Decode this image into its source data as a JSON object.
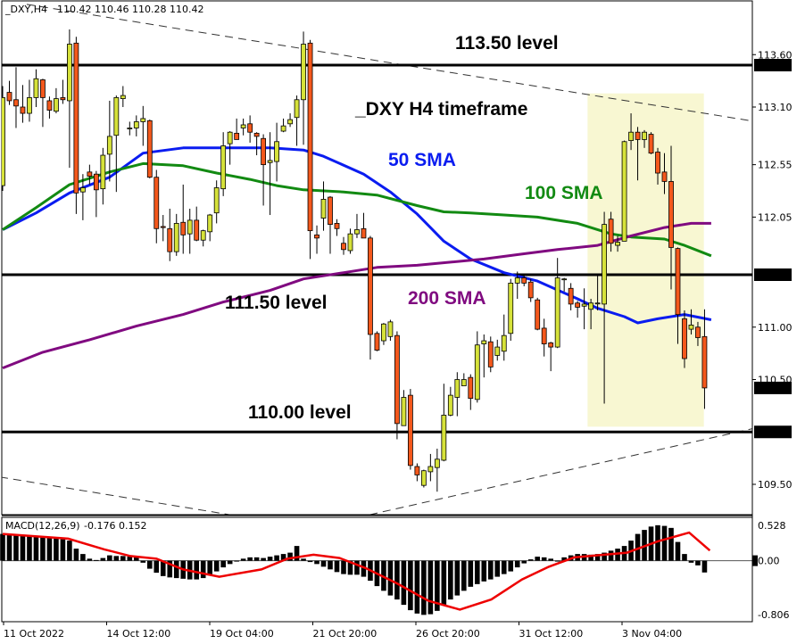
{
  "header": {
    "symbol": "_DXY,H4",
    "ohlc": "110.42 110.46 110.28 110.42"
  },
  "macd_header": {
    "label": "MACD(12,26,9)",
    "values": "-0.176 0.152"
  },
  "colors": {
    "bull": "#d6e23a",
    "bear": "#f4581c",
    "sma50": "#0a1cf0",
    "sma100": "#128a12",
    "sma200": "#800a80",
    "signal": "#ee0000",
    "highlight": "#f8f7d2"
  },
  "annotations": {
    "level_113": "113.50 level",
    "timeframe": "_DXY H4 timeframe",
    "sma50": "50 SMA",
    "sma100": "100 SMA",
    "level_111": "111.50 level",
    "sma200": "200 SMA",
    "level_110": "110.00 level"
  },
  "chart_data": [
    {
      "type": "candlestick",
      "title": "",
      "ylim": [
        109.3,
        114.1
      ],
      "price_ticks": [
        "113.60",
        "113.10",
        "112.55",
        "112.05",
        "111.00",
        "110.50",
        "109.50"
      ],
      "price_markers": [
        "113.50",
        "111.50",
        "110.42",
        "110.00"
      ],
      "horizontal_levels": [
        113.5,
        111.5,
        110.0
      ],
      "x_tick_labels": [
        "11 Oct 2022",
        "14 Oct 12:00",
        "19 Oct 04:00",
        "21 Oct 20:00",
        "26 Oct 20:00",
        "31 Oct 12:00",
        "3 Nov 04:00"
      ],
      "ohlc": [
        [
          112.35,
          113.3,
          112.3,
          113.19
        ],
        [
          113.24,
          113.35,
          113.12,
          113.16
        ],
        [
          113.17,
          113.48,
          112.9,
          113.11
        ],
        [
          113.1,
          113.31,
          112.95,
          113.04
        ],
        [
          113.04,
          113.36,
          112.96,
          113.19
        ],
        [
          113.19,
          113.46,
          113.1,
          113.37
        ],
        [
          113.36,
          113.37,
          112.91,
          113.19
        ],
        [
          113.16,
          113.2,
          112.99,
          113.07
        ],
        [
          113.06,
          113.28,
          113.04,
          113.18
        ],
        [
          113.19,
          113.36,
          113.13,
          113.17
        ],
        [
          113.16,
          113.84,
          112.52,
          113.7
        ],
        [
          113.71,
          113.77,
          112.08,
          112.28
        ],
        [
          112.29,
          112.46,
          112.02,
          112.33
        ],
        [
          112.48,
          112.55,
          112.36,
          112.44
        ],
        [
          112.46,
          112.49,
          112.05,
          112.31
        ],
        [
          112.32,
          112.71,
          112.17,
          112.64
        ],
        [
          112.65,
          113.16,
          112.39,
          112.82
        ],
        [
          112.83,
          113.21,
          112.29,
          113.19
        ],
        [
          113.18,
          113.3,
          113.1,
          113.21
        ],
        [
          112.9,
          112.96,
          112.83,
          112.9
        ],
        [
          112.9,
          113.02,
          112.82,
          112.96
        ],
        [
          112.96,
          113.11,
          112.73,
          112.99
        ],
        [
          112.97,
          112.98,
          112.42,
          112.43
        ],
        [
          112.43,
          112.5,
          111.8,
          111.94
        ],
        [
          111.96,
          112.07,
          111.82,
          111.95
        ],
        [
          111.94,
          112.13,
          111.63,
          111.72
        ],
        [
          111.72,
          112.08,
          111.68,
          111.99
        ],
        [
          112.0,
          112.36,
          111.7,
          111.88
        ],
        [
          111.89,
          112.13,
          111.7,
          112.02
        ],
        [
          112.02,
          112.15,
          111.82,
          111.83
        ],
        [
          111.83,
          111.93,
          111.77,
          111.92
        ],
        [
          111.91,
          112.08,
          111.82,
          112.07
        ],
        [
          112.09,
          112.4,
          111.99,
          112.33
        ],
        [
          112.32,
          112.86,
          112.25,
          112.73
        ],
        [
          112.75,
          112.87,
          112.55,
          112.86
        ],
        [
          112.85,
          112.99,
          112.79,
          112.79
        ],
        [
          112.9,
          112.99,
          112.83,
          112.93
        ],
        [
          112.94,
          113.02,
          112.76,
          112.86
        ],
        [
          112.85,
          112.86,
          112.64,
          112.82
        ],
        [
          112.8,
          112.84,
          112.16,
          112.55
        ],
        [
          112.57,
          112.86,
          112.07,
          112.59
        ],
        [
          112.58,
          112.95,
          112.39,
          112.77
        ],
        [
          112.87,
          112.99,
          112.86,
          112.92
        ],
        [
          112.94,
          113.04,
          112.91,
          112.98
        ],
        [
          113.0,
          113.21,
          112.73,
          113.17
        ],
        [
          113.17,
          113.82,
          112.74,
          113.7
        ],
        [
          113.71,
          113.74,
          111.65,
          111.92
        ],
        [
          111.88,
          111.97,
          111.7,
          111.85
        ],
        [
          112.04,
          112.39,
          111.92,
          112.22
        ],
        [
          112.24,
          112.25,
          111.7,
          111.98
        ],
        [
          111.99,
          112.03,
          111.87,
          111.94
        ],
        [
          111.8,
          111.86,
          111.69,
          111.74
        ],
        [
          111.73,
          111.94,
          111.7,
          111.89
        ],
        [
          111.89,
          112.08,
          111.85,
          111.93
        ],
        [
          111.94,
          112.09,
          111.85,
          111.85
        ],
        [
          111.85,
          111.87,
          110.69,
          110.93
        ],
        [
          110.94,
          110.96,
          110.77,
          110.78
        ],
        [
          110.87,
          111.04,
          110.83,
          111.03
        ],
        [
          110.91,
          111.07,
          110.87,
          111.05
        ],
        [
          110.92,
          110.96,
          109.93,
          110.08
        ],
        [
          110.06,
          110.4,
          110.06,
          110.33
        ],
        [
          110.35,
          110.41,
          109.64,
          109.68
        ],
        [
          109.67,
          109.7,
          109.53,
          109.59
        ],
        [
          109.49,
          109.64,
          109.47,
          109.63
        ],
        [
          109.62,
          109.79,
          109.53,
          109.67
        ],
        [
          109.66,
          109.84,
          109.43,
          109.74
        ],
        [
          109.73,
          110.46,
          109.72,
          110.16
        ],
        [
          110.16,
          110.43,
          110.15,
          110.35
        ],
        [
          110.33,
          110.57,
          110.15,
          110.5
        ],
        [
          110.44,
          110.56,
          110.44,
          110.5
        ],
        [
          110.52,
          110.55,
          110.21,
          110.32
        ],
        [
          110.31,
          110.96,
          110.28,
          110.83
        ],
        [
          110.84,
          110.93,
          110.52,
          110.87
        ],
        [
          110.86,
          110.91,
          110.57,
          110.62
        ],
        [
          110.73,
          110.88,
          110.68,
          110.81
        ],
        [
          110.77,
          111.12,
          110.68,
          110.92
        ],
        [
          110.94,
          111.46,
          110.87,
          111.42
        ],
        [
          111.42,
          111.53,
          111.27,
          111.47
        ],
        [
          111.47,
          111.5,
          111.39,
          111.42
        ],
        [
          111.43,
          111.46,
          111.24,
          111.28
        ],
        [
          111.26,
          111.28,
          110.97,
          110.98
        ],
        [
          110.99,
          111.08,
          110.72,
          110.84
        ],
        [
          110.85,
          110.86,
          110.58,
          110.81
        ],
        [
          110.81,
          111.66,
          110.8,
          111.47
        ],
        [
          111.46,
          111.47,
          111.34,
          111.46
        ],
        [
          111.37,
          111.42,
          111.16,
          111.22
        ],
        [
          111.23,
          111.25,
          111.09,
          111.19
        ],
        [
          111.2,
          111.37,
          110.98,
          111.22
        ],
        [
          111.17,
          111.27,
          110.98,
          111.23
        ],
        [
          111.23,
          111.5,
          111.16,
          111.23
        ],
        [
          111.22,
          112.1,
          110.27,
          111.98
        ],
        [
          112.03,
          112.1,
          111.72,
          111.8
        ],
        [
          111.78,
          111.87,
          111.72,
          111.81
        ],
        [
          111.82,
          112.78,
          111.82,
          112.77
        ],
        [
          112.78,
          113.04,
          112.69,
          112.86
        ],
        [
          112.86,
          112.91,
          112.4,
          112.79
        ],
        [
          112.79,
          112.88,
          112.71,
          112.86
        ],
        [
          112.84,
          112.86,
          112.65,
          112.66
        ],
        [
          112.67,
          112.71,
          112.36,
          112.47
        ],
        [
          112.48,
          112.66,
          112.27,
          112.39
        ],
        [
          112.39,
          112.73,
          111.36,
          111.76
        ],
        [
          111.75,
          111.76,
          110.84,
          111.12
        ],
        [
          111.08,
          111.16,
          110.61,
          110.7
        ],
        [
          110.98,
          111.17,
          110.93,
          111.02
        ],
        [
          111.0,
          111.05,
          110.82,
          110.9
        ],
        [
          110.91,
          111.17,
          110.22,
          110.42
        ]
      ],
      "series": [
        {
          "name": "50 SMA",
          "points": [
            [
              0,
              111.93
            ],
            [
              5,
              112.09
            ],
            [
              10,
              112.28
            ],
            [
              16,
              112.43
            ],
            [
              21,
              112.66
            ],
            [
              27,
              112.71
            ],
            [
              33,
              112.71
            ],
            [
              40,
              112.71
            ],
            [
              45,
              112.69
            ],
            [
              48,
              112.63
            ],
            [
              54,
              112.46
            ],
            [
              58,
              112.29
            ],
            [
              62,
              112.08
            ],
            [
              66,
              111.82
            ],
            [
              70,
              111.65
            ],
            [
              75,
              111.52
            ],
            [
              80,
              111.44
            ],
            [
              86,
              111.27
            ],
            [
              89,
              111.18
            ],
            [
              93,
              111.1
            ],
            [
              95,
              111.04
            ],
            [
              98,
              111.08
            ],
            [
              102,
              111.12
            ],
            [
              106,
              111.07
            ]
          ]
        },
        {
          "name": "100 SMA",
          "points": [
            [
              0,
              111.93
            ],
            [
              5,
              112.14
            ],
            [
              10,
              112.36
            ],
            [
              16,
              112.48
            ],
            [
              21,
              112.56
            ],
            [
              27,
              112.54
            ],
            [
              32,
              112.47
            ],
            [
              37,
              112.41
            ],
            [
              41,
              112.35
            ],
            [
              45,
              112.31
            ],
            [
              51,
              112.29
            ],
            [
              56,
              112.26
            ],
            [
              62,
              112.16
            ],
            [
              66,
              112.1
            ],
            [
              70,
              112.09
            ],
            [
              75,
              112.07
            ],
            [
              80,
              112.05
            ],
            [
              86,
              111.99
            ],
            [
              91,
              111.89
            ],
            [
              94,
              111.86
            ],
            [
              99,
              111.84
            ],
            [
              102,
              111.78
            ],
            [
              106,
              111.68
            ]
          ]
        },
        {
          "name": "200 SMA",
          "points": [
            [
              0,
              110.61
            ],
            [
              6,
              110.76
            ],
            [
              13,
              110.88
            ],
            [
              20,
              111.01
            ],
            [
              27,
              111.12
            ],
            [
              33,
              111.24
            ],
            [
              40,
              111.35
            ],
            [
              45,
              111.46
            ],
            [
              51,
              111.52
            ],
            [
              56,
              111.57
            ],
            [
              62,
              111.59
            ],
            [
              67,
              111.62
            ],
            [
              72,
              111.65
            ],
            [
              78,
              111.7
            ],
            [
              83,
              111.74
            ],
            [
              89,
              111.78
            ],
            [
              94,
              111.87
            ],
            [
              99,
              111.95
            ],
            [
              103,
              111.99
            ],
            [
              106,
              111.99
            ]
          ]
        }
      ],
      "trendlines": [
        [
          [
            3.6,
            114.08
          ],
          [
            112.8,
            112.96
          ]
        ],
        [
          [
            -0.4,
            109.57
          ],
          [
            34,
            109.21
          ]
        ],
        [
          [
            54.9,
            109.21
          ],
          [
            112.8,
            110.04
          ]
        ]
      ],
      "highlight_zone": {
        "from_bar": 87.5,
        "to_bar": 104.9,
        "price_top": 113.23,
        "price_bottom": 110.05
      }
    },
    {
      "type": "bar",
      "title": "MACD(12,26,9)",
      "ylim": [
        -0.806,
        0.528
      ],
      "y_ticks": [
        "0.528",
        "0.00",
        "-0.806"
      ],
      "histogram": [
        0.4,
        0.39,
        0.38,
        0.38,
        0.37,
        0.36,
        0.35,
        0.34,
        0.33,
        0.32,
        0.3,
        0.18,
        0.1,
        0.03,
        0.01,
        0.04,
        0.08,
        0.07,
        0.07,
        0.06,
        0.05,
        -0.03,
        -0.12,
        -0.18,
        -0.23,
        -0.25,
        -0.26,
        -0.27,
        -0.28,
        -0.28,
        -0.26,
        -0.21,
        -0.16,
        -0.1,
        -0.05,
        -0.01,
        0.03,
        0.05,
        0.05,
        0.04,
        0.06,
        0.08,
        0.1,
        0.12,
        0.22,
        0.03,
        -0.02,
        -0.05,
        -0.09,
        -0.13,
        -0.17,
        -0.2,
        -0.21,
        -0.21,
        -0.24,
        -0.3,
        -0.38,
        -0.45,
        -0.52,
        -0.58,
        -0.66,
        -0.74,
        -0.79,
        -0.81,
        -0.8,
        -0.75,
        -0.67,
        -0.58,
        -0.52,
        -0.45,
        -0.39,
        -0.35,
        -0.31,
        -0.28,
        -0.24,
        -0.2,
        -0.16,
        -0.1,
        -0.04,
        0.02,
        0.06,
        0.05,
        0.03,
        0.0,
        0.05,
        0.08,
        0.1,
        0.1,
        0.09,
        0.1,
        0.12,
        0.15,
        0.18,
        0.22,
        0.3,
        0.4,
        0.46,
        0.51,
        0.53,
        0.52,
        0.49,
        0.28,
        0.1,
        -0.03,
        -0.07,
        -0.176
      ],
      "signal": [
        [
          0,
          0.4
        ],
        [
          9.8,
          0.33
        ],
        [
          15.2,
          0.17
        ],
        [
          19.1,
          0.07
        ],
        [
          23,
          0.03
        ],
        [
          27,
          -0.13
        ],
        [
          32.4,
          -0.24
        ],
        [
          38.7,
          -0.13
        ],
        [
          42.6,
          0.03
        ],
        [
          46.5,
          0.09
        ],
        [
          50.4,
          0.04
        ],
        [
          54.3,
          -0.11
        ],
        [
          59,
          -0.34
        ],
        [
          63.7,
          -0.6
        ],
        [
          68.4,
          -0.73
        ],
        [
          73.1,
          -0.58
        ],
        [
          77.7,
          -0.28
        ],
        [
          81.7,
          -0.09
        ],
        [
          85.5,
          0.05
        ],
        [
          93.4,
          0.12
        ],
        [
          98,
          0.29
        ],
        [
          102.7,
          0.42
        ],
        [
          105.8,
          0.152
        ]
      ]
    }
  ]
}
